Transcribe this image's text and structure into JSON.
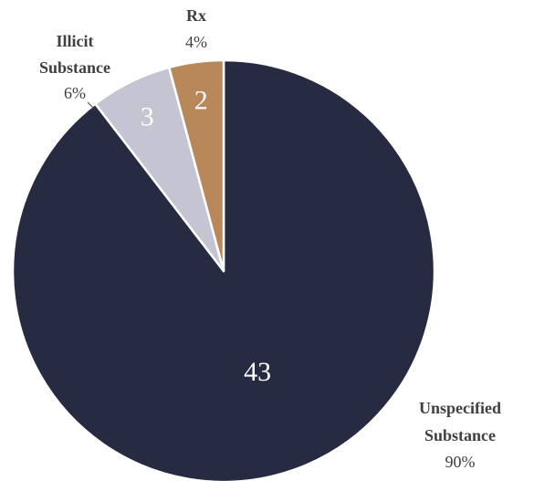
{
  "chart_data": {
    "type": "pie",
    "title": "",
    "slices": [
      {
        "label_lines": [
          "Unspecified",
          "Substance"
        ],
        "value": 43,
        "value_label": "43",
        "percent_label": "90%",
        "color": "#272b42"
      },
      {
        "label_lines": [
          "Illicit",
          "Substance"
        ],
        "value": 3,
        "value_label": "3",
        "percent_label": "6%",
        "color": "#c5c4d3"
      },
      {
        "label_lines": [
          "Rx"
        ],
        "value": 2,
        "value_label": "2",
        "percent_label": "4%",
        "color": "#b8885a"
      }
    ],
    "start": "top",
    "direction": "clockwise",
    "slice_border_color": "#ffffff"
  }
}
